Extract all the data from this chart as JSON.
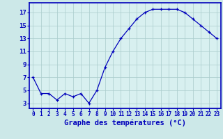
{
  "hours": [
    0,
    1,
    2,
    3,
    4,
    5,
    6,
    7,
    8,
    9,
    10,
    11,
    12,
    13,
    14,
    15,
    16,
    17,
    18,
    19,
    20,
    21,
    22,
    23
  ],
  "temps": [
    7.0,
    4.5,
    4.5,
    3.5,
    4.5,
    4.0,
    4.5,
    3.0,
    5.0,
    8.5,
    11.0,
    13.0,
    14.5,
    16.0,
    17.0,
    17.5,
    17.5,
    17.5,
    17.5,
    17.0,
    16.0,
    15.0,
    14.0,
    13.0
  ],
  "xlabel": "Graphe des températures (°C)",
  "ytick_vals": [
    3,
    5,
    7,
    9,
    11,
    13,
    15,
    17
  ],
  "ytick_labels": [
    "3",
    "5",
    "7",
    "9",
    "11",
    "13",
    "15",
    "17"
  ],
  "xtick_labels": [
    "0",
    "1",
    "2",
    "3",
    "4",
    "5",
    "6",
    "7",
    "8",
    "9",
    "10",
    "11",
    "12",
    "13",
    "14",
    "15",
    "16",
    "17",
    "18",
    "19",
    "20",
    "21",
    "22",
    "23"
  ],
  "ylim": [
    2.2,
    18.5
  ],
  "xlim": [
    -0.5,
    23.5
  ],
  "bg_color": "#cce8e8",
  "plot_bg": "#d8f0f0",
  "line_color": "#0000bb",
  "grid_color": "#aacccc",
  "axis_bar_color": "#0000bb",
  "tick_color": "#0000bb",
  "label_color": "#0000bb",
  "xlabel_fontsize": 7.5,
  "tick_fontsize": 5.5,
  "ytick_fontsize": 6.5
}
